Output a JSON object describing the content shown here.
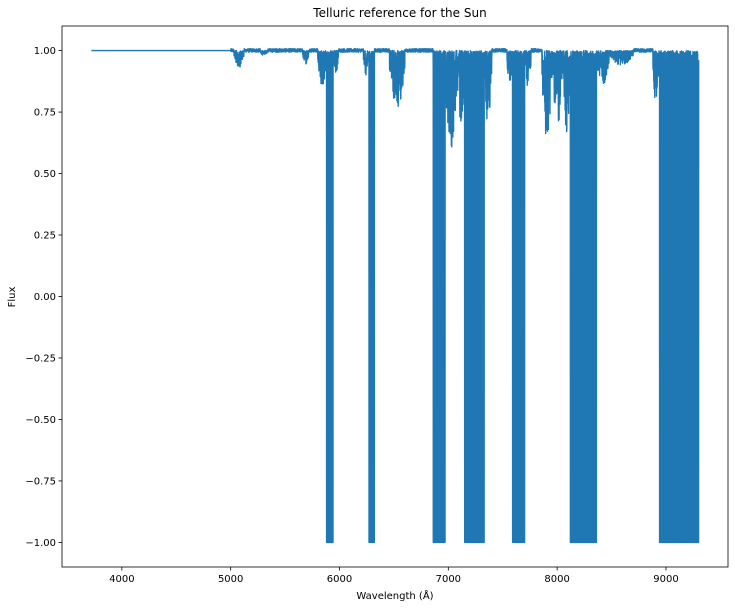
{
  "chart_data": {
    "type": "line",
    "title": "Telluric reference for the Sun",
    "xlabel": "Wavelength (Å)",
    "ylabel": "Flux",
    "xlim": [
      3450,
      9570
    ],
    "ylim": [
      -1.1,
      1.1
    ],
    "x_ticks": [
      4000,
      5000,
      6000,
      7000,
      8000,
      9000
    ],
    "x_tick_labels": [
      "4000",
      "5000",
      "6000",
      "7000",
      "8000",
      "9000"
    ],
    "y_ticks": [
      -1.0,
      -0.75,
      -0.5,
      -0.25,
      0.0,
      0.25,
      0.5,
      0.75,
      1.0
    ],
    "y_tick_labels": [
      "−1.00",
      "−0.75",
      "−0.50",
      "−0.25",
      "0.00",
      "0.25",
      "0.50",
      "0.75",
      "1.00"
    ],
    "grid": false,
    "series": [
      {
        "color": "#1f77b4",
        "continuum": {
          "x_start": 3720,
          "x_end": 5000,
          "flux": 1.0
        },
        "noise": {
          "x_start": 5000,
          "x_end": 9300,
          "amplitude": 0.012
        },
        "saturated_bands": [
          {
            "x_start": 5880,
            "x_end": 5940,
            "min_flux": -1.0
          },
          {
            "x_start": 6270,
            "x_end": 6320,
            "min_flux": -1.0
          },
          {
            "x_start": 6860,
            "x_end": 6970,
            "min_flux": -1.0
          },
          {
            "x_start": 7150,
            "x_end": 7330,
            "min_flux": -1.0
          },
          {
            "x_start": 7590,
            "x_end": 7700,
            "min_flux": -1.0
          },
          {
            "x_start": 8120,
            "x_end": 8360,
            "min_flux": -1.0
          },
          {
            "x_start": 8940,
            "x_end": 9300,
            "min_flux": -1.0
          }
        ],
        "shallow_features": [
          {
            "x_start": 5030,
            "x_end": 5120,
            "min_flux": 0.93
          },
          {
            "x_start": 5270,
            "x_end": 5340,
            "min_flux": 0.98
          },
          {
            "x_start": 5660,
            "x_end": 5720,
            "min_flux": 0.94
          },
          {
            "x_start": 5800,
            "x_end": 5880,
            "min_flux": 0.85
          },
          {
            "x_start": 5940,
            "x_end": 5990,
            "min_flux": 0.9
          },
          {
            "x_start": 6220,
            "x_end": 6270,
            "min_flux": 0.9
          },
          {
            "x_start": 6460,
            "x_end": 6600,
            "min_flux": 0.76
          },
          {
            "x_start": 6970,
            "x_end": 7080,
            "min_flux": 0.59
          },
          {
            "x_start": 7080,
            "x_end": 7150,
            "min_flux": 0.7
          },
          {
            "x_start": 7330,
            "x_end": 7400,
            "min_flux": 0.7
          },
          {
            "x_start": 7540,
            "x_end": 7590,
            "min_flux": 0.85
          },
          {
            "x_start": 7700,
            "x_end": 7760,
            "min_flux": 0.85
          },
          {
            "x_start": 7860,
            "x_end": 7950,
            "min_flux": 0.63
          },
          {
            "x_start": 7950,
            "x_end": 8060,
            "min_flux": 0.7
          },
          {
            "x_start": 8060,
            "x_end": 8120,
            "min_flux": 0.6
          },
          {
            "x_start": 8360,
            "x_end": 8480,
            "min_flux": 0.86
          },
          {
            "x_start": 8480,
            "x_end": 8700,
            "min_flux": 0.94
          },
          {
            "x_start": 8880,
            "x_end": 8940,
            "min_flux": 0.77
          }
        ]
      }
    ]
  }
}
